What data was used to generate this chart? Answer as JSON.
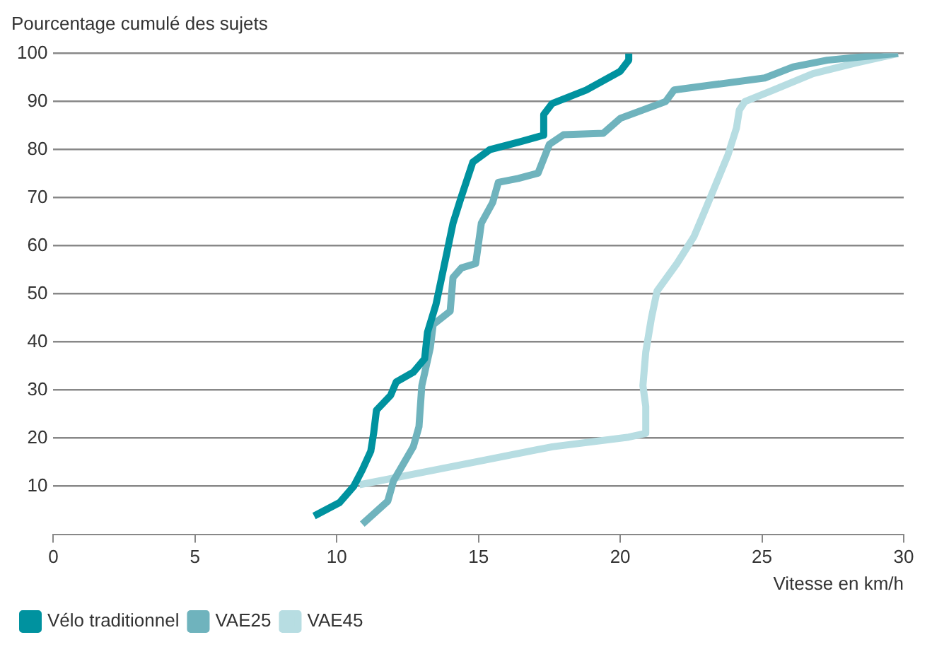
{
  "chart_data": {
    "type": "line",
    "ylabel": "Pourcentage cumulé des sujets",
    "xlabel": "Vitesse en km/h",
    "xlim": [
      0,
      30
    ],
    "xticks": [
      0,
      5,
      10,
      15,
      20,
      25,
      30
    ],
    "ylim": [
      0,
      100
    ],
    "yticks": [
      10,
      20,
      30,
      40,
      50,
      60,
      70,
      80,
      90,
      100
    ],
    "grid": "y",
    "legend": "bottom left",
    "marker": "none",
    "line_style": "solid",
    "series": [
      {
        "name": "Vélo traditionnel",
        "color": "#00929f",
        "x": [
          9.2,
          10.1,
          10.6,
          10.9,
          11.2,
          11.3,
          11.4,
          11.9,
          12.1,
          12.7,
          13.1,
          13.2,
          13.5,
          13.7,
          13.9,
          14.1,
          14.4,
          14.8,
          15.4,
          16.5,
          17.3,
          17.3,
          17.6,
          18.8,
          20.0,
          20.3,
          20.3
        ],
        "values": [
          3.8,
          6.6,
          10,
          13.4,
          17.3,
          21,
          25.8,
          28.9,
          31.7,
          33.7,
          36.5,
          42,
          47.8,
          53.4,
          59,
          64.7,
          70.3,
          77.4,
          80,
          81.7,
          83,
          87.3,
          89.6,
          92.4,
          96.3,
          98.6,
          100
        ]
      },
      {
        "name": "VAE25",
        "color": "#6fb3bd",
        "x": [
          10.9,
          11.8,
          12.0,
          12.7,
          12.9,
          13.0,
          13.3,
          13.4,
          14.0,
          14.1,
          14.4,
          14.9,
          15.1,
          15.5,
          15.7,
          16.4,
          17.1,
          17.5,
          18.0,
          19.4,
          20.0,
          21.6,
          21.9,
          23.3,
          25.1,
          26.1,
          27.3,
          29.8
        ],
        "values": [
          2.1,
          6.9,
          11.1,
          18.2,
          22.4,
          30.9,
          38.8,
          43.6,
          46.4,
          53.4,
          55.4,
          56.3,
          64.7,
          69,
          73.2,
          74,
          75.1,
          81.1,
          83.1,
          83.4,
          86.5,
          90,
          92.4,
          93.5,
          94.9,
          97.2,
          98.6,
          100
        ]
      },
      {
        "name": "VAE45",
        "color": "#b7dde2",
        "x": [
          10.8,
          12.7,
          15.2,
          17.6,
          20.3,
          20.9,
          20.9,
          20.8,
          20.9,
          21.1,
          21.3,
          22.0,
          22.6,
          23.0,
          23.4,
          23.8,
          24.1,
          24.2,
          24.4,
          25.4,
          26.8,
          28.3,
          29.8
        ],
        "values": [
          10.3,
          12.5,
          15.4,
          18.2,
          20.2,
          21,
          26.6,
          30.9,
          37.9,
          45,
          50.6,
          56.3,
          61.9,
          67.5,
          73.2,
          78.9,
          84.5,
          88.2,
          90,
          92.4,
          95.8,
          98,
          100
        ]
      }
    ]
  }
}
